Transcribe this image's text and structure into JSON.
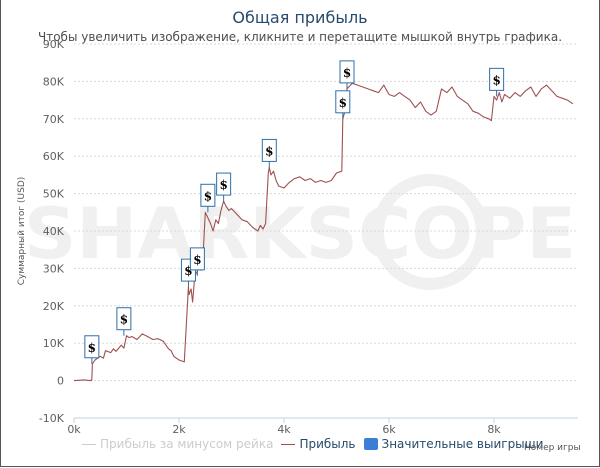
{
  "title": "Общая прибыль",
  "subtitle": "Чтобы увеличить изображение, кликните и перетащите мышкой внутрь графика.",
  "watermark": "SHARKSCOPE",
  "legend": {
    "items": [
      {
        "label": "Прибыль за минусом рейка",
        "color": "#cccccc",
        "kind": "line",
        "disabled": true
      },
      {
        "label": "Прибыль",
        "color": "#a05050",
        "kind": "line",
        "disabled": false
      },
      {
        "label": "Значительные выигрыши",
        "color": "#3a7fd5",
        "kind": "box",
        "disabled": false
      }
    ]
  },
  "xaxis_title": "Номер игры",
  "yaxis_title": "Суммарный итог (USD)",
  "colors": {
    "profit_line": "#a05050",
    "flag_border": "#2f6fa8",
    "grid": "#d8d8d8",
    "title": "#274b6d"
  },
  "chart_data": {
    "type": "line",
    "title": "Общая прибыль",
    "subtitle": "Чтобы увеличить изображение, кликните и перетащите мышкой внутрь графика.",
    "xlabel": "Номер игры",
    "ylabel": "Суммарный итог (USD)",
    "x_ticks": [
      "0k",
      "2k",
      "4k",
      "6k",
      "8k"
    ],
    "y_ticks": [
      "-10K",
      "0",
      "10K",
      "20K",
      "30K",
      "40K",
      "50K",
      "60K",
      "70K",
      "80K",
      "90K"
    ],
    "xlim": [
      0,
      9600
    ],
    "ylim": [
      -10000,
      90000
    ],
    "grid": true,
    "legend_position": "bottom",
    "series": [
      {
        "name": "Прибыль",
        "x": [
          0,
          200,
          300,
          320,
          330,
          340,
          350,
          400,
          500,
          560,
          600,
          700,
          750,
          800,
          900,
          950,
          1000,
          1050,
          1100,
          1200,
          1300,
          1400,
          1500,
          1600,
          1700,
          1750,
          1800,
          1850,
          1900,
          1950,
          2000,
          2100,
          2180,
          2190,
          2230,
          2260,
          2300,
          2400,
          2420,
          2450,
          2500,
          2550,
          2600,
          2650,
          2700,
          2750,
          2800,
          2850,
          2900,
          2950,
          3000,
          3100,
          3200,
          3300,
          3400,
          3500,
          3550,
          3600,
          3650,
          3700,
          3720,
          3750,
          3800,
          3850,
          3900,
          4000,
          4100,
          4200,
          4300,
          4400,
          4500,
          4600,
          4700,
          4800,
          4900,
          5000,
          5100,
          5120,
          5150,
          5200,
          5300,
          5400,
          5500,
          5600,
          5700,
          5800,
          5900,
          6000,
          6100,
          6200,
          6300,
          6400,
          6500,
          6600,
          6700,
          6800,
          6900,
          7000,
          7100,
          7200,
          7300,
          7400,
          7500,
          7600,
          7700,
          7800,
          7900,
          7950,
          8000,
          8050,
          8100,
          8150,
          8200,
          8300,
          8400,
          8500,
          8600,
          8700,
          8800,
          8900,
          9000,
          9100,
          9200,
          9300,
          9400,
          9500
        ],
        "values": [
          0,
          200,
          0,
          100,
          0,
          200,
          4500,
          5500,
          6500,
          6000,
          8000,
          7500,
          8500,
          7800,
          9500,
          8700,
          12000,
          11500,
          11800,
          11000,
          12500,
          11800,
          11000,
          11200,
          10500,
          9500,
          8500,
          8000,
          6500,
          6000,
          5500,
          5000,
          25000,
          23000,
          24500,
          21000,
          28000,
          30500,
          29500,
          31000,
          45000,
          43500,
          42000,
          40000,
          43000,
          42000,
          45500,
          48000,
          46500,
          45500,
          46000,
          44500,
          43000,
          42500,
          41000,
          40000,
          41500,
          40500,
          42000,
          55500,
          57000,
          55000,
          56000,
          53500,
          52000,
          51500,
          53000,
          54000,
          54500,
          53500,
          54000,
          53000,
          53500,
          53000,
          53500,
          55500,
          56000,
          70000,
          71500,
          78000,
          79500,
          79000,
          78500,
          78000,
          77500,
          77000,
          79000,
          76500,
          76000,
          77000,
          76000,
          75000,
          73000,
          74500,
          72000,
          71000,
          72000,
          78000,
          77000,
          78500,
          76000,
          75000,
          74000,
          72000,
          71500,
          70500,
          70000,
          69500,
          76000,
          75000,
          77000,
          74500,
          76500,
          75500,
          77000,
          76000,
          77500,
          78500,
          76000,
          78000,
          79000,
          77500,
          76000,
          75500,
          75000,
          74000
        ]
      }
    ],
    "markers": {
      "name": "Значительные выигрыши",
      "symbol": "$",
      "points": [
        {
          "x": 340,
          "y": 4500
        },
        {
          "x": 950,
          "y": 12000
        },
        {
          "x": 2180,
          "y": 25000
        },
        {
          "x": 2350,
          "y": 28000
        },
        {
          "x": 2550,
          "y": 45000
        },
        {
          "x": 2850,
          "y": 48000
        },
        {
          "x": 3720,
          "y": 57000
        },
        {
          "x": 5120,
          "y": 70000
        },
        {
          "x": 5200,
          "y": 78000
        },
        {
          "x": 8050,
          "y": 76000
        }
      ]
    }
  }
}
